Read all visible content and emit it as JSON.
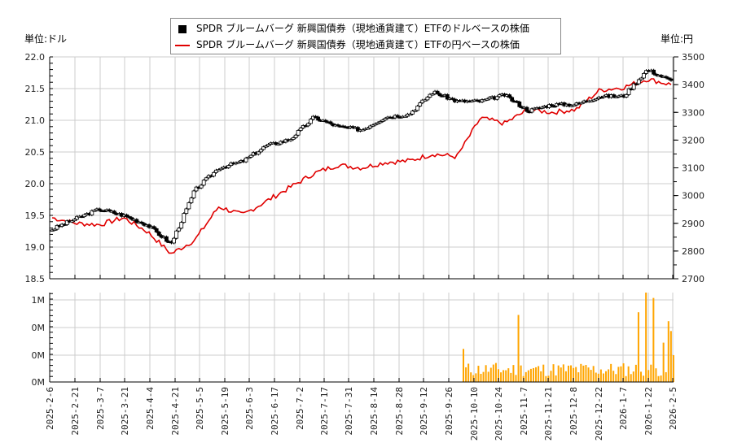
{
  "legend": {
    "usd_label": "SPDR ブルームバーグ 新興国債券（現地通貨建て）ETFのドルベースの株価",
    "jpy_label": "SPDR ブルームバーグ 新興国債券（現地通貨建て）ETFの円ベースの株価"
  },
  "units": {
    "left": "単位:ドル",
    "right": "単位:円"
  },
  "colors": {
    "candle": "#000000",
    "jpy_line": "#e00000",
    "volume": "#ffa500",
    "grid": "#cccccc"
  },
  "chart_data": [
    {
      "type": "candlestick+line",
      "title": "",
      "series": [
        {
          "name": "SPDR ブルームバーグ 新興国債券（現地通貨建て）ETFのドルベースの株価",
          "axis": "left",
          "style": "candlestick",
          "x": [
            "2025-2-6",
            "2025-2-21",
            "2025-3-7",
            "2025-3-21",
            "2025-4-4",
            "2025-4-9",
            "2025-4-21",
            "2025-5-5",
            "2025-5-19",
            "2025-6-3",
            "2025-6-17",
            "2025-7-2",
            "2025-7-17",
            "2025-7-31",
            "2025-8-14",
            "2025-8-28",
            "2025-9-12",
            "2025-9-26",
            "2025-10-10",
            "2025-10-24",
            "2025-11-7",
            "2025-11-21",
            "2025-12-8",
            "2025-12-22",
            "2026-1-7",
            "2026-1-22",
            "2026-2-5"
          ],
          "values": [
            19.28,
            19.45,
            19.6,
            19.5,
            19.35,
            19.05,
            19.9,
            20.25,
            20.35,
            20.6,
            20.7,
            21.05,
            20.9,
            20.85,
            21.05,
            21.1,
            21.45,
            21.3,
            21.3,
            21.4,
            21.15,
            21.25,
            21.25,
            21.38,
            21.38,
            21.8,
            21.62
          ]
        },
        {
          "name": "SPDR ブルームバーグ 新興国債券（現地通貨建て）ETFの円ベースの株価",
          "axis": "right",
          "style": "line",
          "x": [
            "2025-2-6",
            "2025-2-21",
            "2025-3-7",
            "2025-3-21",
            "2025-4-4",
            "2025-4-9",
            "2025-4-21",
            "2025-5-5",
            "2025-5-19",
            "2025-6-3",
            "2025-6-17",
            "2025-7-2",
            "2025-7-17",
            "2025-7-31",
            "2025-8-14",
            "2025-8-28",
            "2025-9-12",
            "2025-9-26",
            "2025-10-10",
            "2025-10-24",
            "2025-11-7",
            "2025-11-21",
            "2025-12-8",
            "2025-12-22",
            "2026-1-7",
            "2026-1-22",
            "2026-2-5"
          ],
          "values": [
            2920,
            2900,
            2895,
            2920,
            2870,
            2790,
            2840,
            2960,
            2930,
            2980,
            3030,
            3080,
            3110,
            3100,
            3120,
            3125,
            3150,
            3140,
            3280,
            3260,
            3310,
            3300,
            3310,
            3380,
            3390,
            3420,
            3400
          ]
        }
      ],
      "left_axis": {
        "label": "単位:ドル",
        "ylim": [
          18.5,
          22.0
        ],
        "ticks": [
          "18.5",
          "19.0",
          "19.5",
          "20.0",
          "20.5",
          "21.0",
          "21.5",
          "22.0"
        ]
      },
      "right_axis": {
        "label": "単位:円",
        "ylim": [
          2700,
          3500
        ],
        "ticks": [
          "2700",
          "2800",
          "2900",
          "3000",
          "3100",
          "3200",
          "3300",
          "3400",
          "3500"
        ]
      },
      "grid": true,
      "legend_position": "top-center"
    },
    {
      "type": "bar",
      "title": "",
      "ylabel": "",
      "y_ticks": [
        "0M",
        "0M",
        "0M",
        "1M"
      ],
      "note": "Volume bars present only from ~2025-10-01 onwards; values relative (scale 0–1M)",
      "categories": [
        "2025-10-1",
        "2025-10-10",
        "2025-10-24",
        "2025-11-3",
        "2025-11-7",
        "2025-11-21",
        "2025-12-8",
        "2025-12-22",
        "2026-1-7",
        "2026-1-13",
        "2026-1-15",
        "2026-1-22",
        "2026-2-2",
        "2026-2-3",
        "2026-2-4",
        "2026-2-5"
      ],
      "values": [
        0.37,
        0.25,
        0.32,
        0.75,
        0.2,
        0.3,
        0.2,
        0.28,
        0.78,
        1.0,
        0.94,
        0.2,
        0.44,
        0.68,
        0.57,
        0.3
      ],
      "ylim": [
        0,
        1.0
      ],
      "color": "#ffa500"
    }
  ],
  "x_axis": {
    "ticks": [
      "2025-2-6",
      "2025-2-21",
      "2025-3-7",
      "2025-3-21",
      "2025-4-4",
      "2025-4-21",
      "2025-5-5",
      "2025-5-19",
      "2025-6-3",
      "2025-6-17",
      "2025-7-2",
      "2025-7-17",
      "2025-7-31",
      "2025-8-14",
      "2025-8-28",
      "2025-9-12",
      "2025-9-26",
      "2025-10-10",
      "2025-10-24",
      "2025-11-7",
      "2025-11-21",
      "2025-12-8",
      "2025-12-22",
      "2026-1-7",
      "2026-1-22",
      "2026-2-5"
    ]
  }
}
